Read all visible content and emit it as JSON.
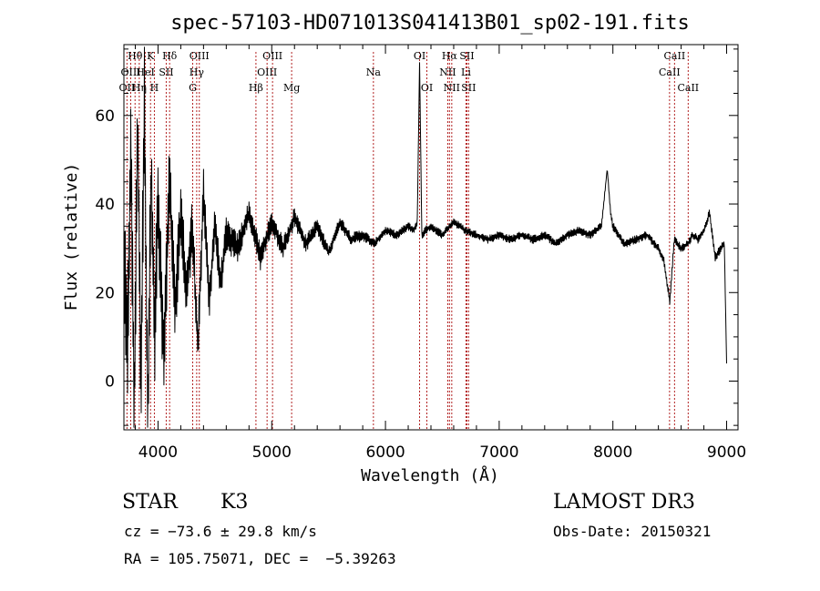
{
  "chart_data": {
    "type": "line",
    "title": "spec-57103-HD071013S041413B01_sp02-191.fits",
    "xlabel": "Wavelength (Å)",
    "ylabel": "Flux (relative)",
    "xlim": [
      3700,
      9100
    ],
    "ylim": [
      -11,
      76
    ],
    "x_ticks": [
      4000,
      5000,
      6000,
      7000,
      8000,
      9000
    ],
    "y_ticks": [
      0,
      20,
      40,
      60
    ],
    "grid": false,
    "spectral_lines": [
      {
        "name": "OII",
        "wavelength": 3727,
        "row": 3
      },
      {
        "name": "Hθ",
        "wavelength": 3798,
        "row": 1
      },
      {
        "name": "OIII",
        "wavelength": 3760,
        "row": 2
      },
      {
        "name": "HeI",
        "wavelength": 3889,
        "row": 2
      },
      {
        "name": "K",
        "wavelength": 3934,
        "row": 1
      },
      {
        "name": "Hη",
        "wavelength": 3835,
        "row": 3
      },
      {
        "name": "H",
        "wavelength": 3968,
        "row": 3
      },
      {
        "name": "SII",
        "wavelength": 4072,
        "row": 2
      },
      {
        "name": "Hδ",
        "wavelength": 4102,
        "row": 1
      },
      {
        "name": "OIII",
        "wavelength": 4363,
        "row": 1
      },
      {
        "name": "Hγ",
        "wavelength": 4340,
        "row": 2
      },
      {
        "name": "G",
        "wavelength": 4305,
        "row": 3
      },
      {
        "name": "Hβ",
        "wavelength": 4861,
        "row": 3
      },
      {
        "name": "OIII",
        "wavelength": 5007,
        "row": 1
      },
      {
        "name": "OIII",
        "wavelength": 4959,
        "row": 2
      },
      {
        "name": "Mg",
        "wavelength": 5175,
        "row": 3
      },
      {
        "name": "Na",
        "wavelength": 5894,
        "row": 2
      },
      {
        "name": "OI",
        "wavelength": 6300,
        "row": 1
      },
      {
        "name": "OI",
        "wavelength": 6364,
        "row": 3
      },
      {
        "name": "Hα",
        "wavelength": 6563,
        "row": 1
      },
      {
        "name": "NII",
        "wavelength": 6548,
        "row": 2
      },
      {
        "name": "NII",
        "wavelength": 6583,
        "row": 3
      },
      {
        "name": "SII",
        "wavelength": 6716,
        "row": 1
      },
      {
        "name": "Li",
        "wavelength": 6708,
        "row": 2
      },
      {
        "name": "SII",
        "wavelength": 6731,
        "row": 3
      },
      {
        "name": "CaII",
        "wavelength": 8542,
        "row": 1
      },
      {
        "name": "CaII",
        "wavelength": 8498,
        "row": 2
      },
      {
        "name": "CaII",
        "wavelength": 8662,
        "row": 3
      }
    ],
    "spectrum_anchors": {
      "x": [
        3700,
        3730,
        3760,
        3790,
        3820,
        3850,
        3880,
        3910,
        3940,
        3970,
        4000,
        4050,
        4100,
        4150,
        4200,
        4250,
        4300,
        4350,
        4400,
        4450,
        4500,
        4550,
        4600,
        4700,
        4800,
        4900,
        5000,
        5100,
        5200,
        5300,
        5400,
        5500,
        5600,
        5700,
        5800,
        5900,
        6000,
        6100,
        6200,
        6250,
        6280,
        6300,
        6320,
        6350,
        6400,
        6500,
        6600,
        6700,
        6800,
        6900,
        7000,
        7100,
        7200,
        7300,
        7400,
        7500,
        7600,
        7700,
        7800,
        7900,
        7950,
        7980,
        8000,
        8050,
        8100,
        8200,
        8300,
        8400,
        8450,
        8500,
        8540,
        8600,
        8660,
        8700,
        8750,
        8800,
        8850,
        8900,
        8950,
        8980,
        9000
      ],
      "y": [
        30,
        5,
        55,
        -8,
        60,
        0,
        65,
        -9,
        50,
        10,
        40,
        5,
        45,
        15,
        38,
        20,
        35,
        8,
        42,
        18,
        36,
        22,
        33,
        30,
        38,
        28,
        36,
        30,
        37,
        31,
        35,
        29,
        36,
        32,
        33,
        31,
        34,
        33,
        35,
        34,
        36,
        72,
        33,
        34,
        35,
        33,
        36,
        34,
        33,
        32,
        33,
        32,
        33,
        32,
        33,
        31,
        33,
        34,
        33,
        35,
        48,
        38,
        35,
        33,
        31,
        32,
        33,
        30,
        27,
        18,
        32,
        30,
        31,
        33,
        32,
        34,
        38,
        28,
        30,
        31,
        4
      ]
    },
    "spectrum_amplitude": [
      28,
      28,
      28,
      28,
      28,
      28,
      28,
      28,
      28,
      28,
      24,
      20,
      20,
      18,
      16,
      14,
      14,
      12,
      12,
      10,
      10,
      8,
      8,
      7,
      6,
      6,
      5,
      5,
      5,
      4,
      4,
      3,
      3,
      3,
      3,
      2,
      2,
      2,
      2,
      2,
      2,
      0,
      2,
      2,
      2,
      2,
      2,
      2,
      2,
      2,
      2,
      2,
      2,
      2,
      2,
      2,
      2,
      2,
      2,
      2,
      0,
      2,
      2,
      2,
      2,
      2,
      2,
      2,
      2,
      2,
      2,
      2,
      2,
      2,
      2,
      2,
      2,
      2,
      2,
      2,
      0
    ]
  },
  "info": {
    "object_type": "STAR",
    "subclass": "K3",
    "cz": "cz = −73.6 ± 29.8 km/s",
    "coords": "RA = 105.75071, DEC =  −5.39263",
    "survey": "LAMOST DR3",
    "obs_date": "Obs-Date: 20150321"
  }
}
